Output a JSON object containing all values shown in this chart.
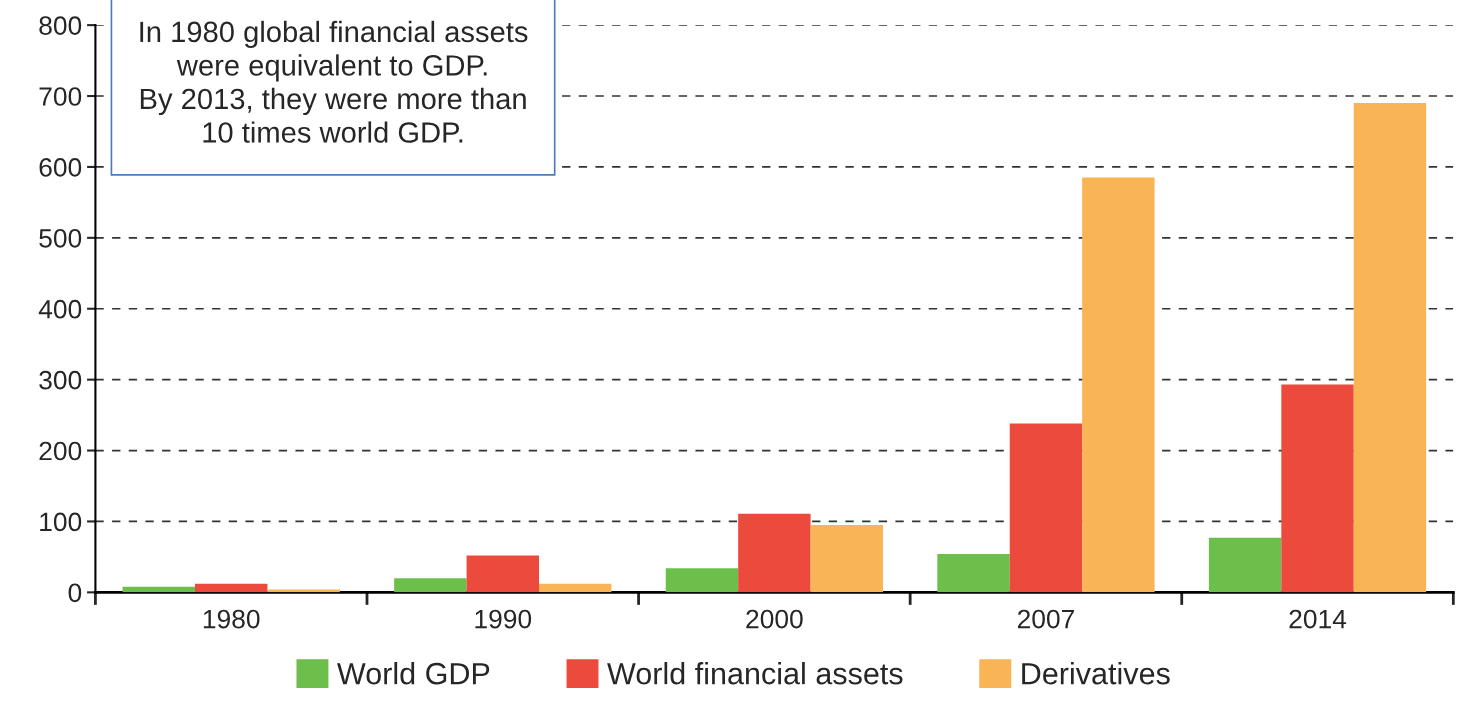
{
  "chart_data": {
    "type": "bar",
    "categories": [
      "1980",
      "1990",
      "2000",
      "2007",
      "2014"
    ],
    "series": [
      {
        "name": "World GDP",
        "color": "#6cbf4a",
        "values": [
          8,
          20,
          34,
          54,
          77
        ]
      },
      {
        "name": "World financial assets",
        "color": "#ec4a3c",
        "values": [
          12,
          52,
          111,
          238,
          293
        ]
      },
      {
        "name": "Derivatives",
        "color": "#f8b455",
        "values": [
          4,
          12,
          95,
          585,
          690
        ]
      }
    ],
    "ylim": [
      0,
      800
    ],
    "yticks": [
      0,
      100,
      200,
      300,
      400,
      500,
      600,
      700,
      800
    ],
    "grid": "y",
    "legend": "bottom",
    "annotations": [
      "In 1980 global financial assets\nwere equivalent to GDP.\nBy 2013, they were more than\n10 times world GDP."
    ]
  }
}
